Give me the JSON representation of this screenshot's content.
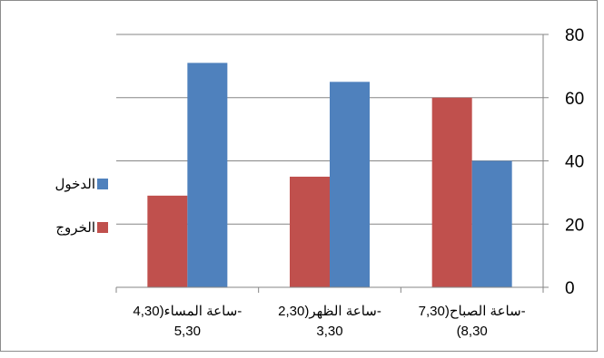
{
  "chart_data": {
    "type": "bar",
    "categories": [
      "ساعة المساء(4,30-\n5,30",
      "ساعة الظهر(2,30-\n3,30",
      "ساعة الصباح(7,30-\n(8,30"
    ],
    "series": [
      {
        "name": "الخروج",
        "values": [
          29,
          35,
          60
        ],
        "color": "#c0504d"
      },
      {
        "name": "الدخول",
        "values": [
          71,
          65,
          40
        ],
        "color": "#4f81bd"
      }
    ],
    "y_ticks": [
      "0",
      "20",
      "40",
      "60",
      "80"
    ],
    "ylim": [
      0,
      80
    ],
    "y_axis_position": "right",
    "grid": true,
    "legend_position": "left"
  }
}
